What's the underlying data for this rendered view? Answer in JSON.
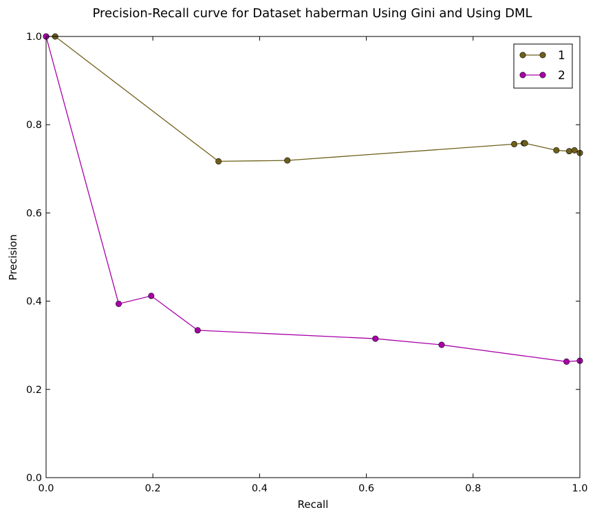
{
  "chart_data": {
    "type": "line",
    "title": "Precision-Recall curve for Dataset haberman Using Gini and Using DML",
    "xlabel": "Recall",
    "ylabel": "Precision",
    "xlim": [
      0.0,
      1.0
    ],
    "ylim": [
      0.0,
      1.0
    ],
    "xticks": [
      "0.0",
      "0.2",
      "0.4",
      "0.6",
      "0.8",
      "1.0"
    ],
    "yticks": [
      "0.0",
      "0.2",
      "0.4",
      "0.6",
      "0.8",
      "1.0"
    ],
    "grid": false,
    "legend_position": "top-right",
    "series": [
      {
        "name": "1",
        "color": "#6e5f1b",
        "marker": "circle",
        "x": [
          0.0,
          0.017,
          0.323,
          0.452,
          0.877,
          0.895,
          0.897,
          0.956,
          0.98,
          0.99,
          1.0
        ],
        "y": [
          1.0,
          1.0,
          0.717,
          0.719,
          0.756,
          0.758,
          0.758,
          0.742,
          0.74,
          0.742,
          0.736
        ]
      },
      {
        "name": "2",
        "color": "#a800a8",
        "marker": "circle",
        "x": [
          0.0,
          0.136,
          0.197,
          0.284,
          0.617,
          0.741,
          0.975,
          1.0
        ],
        "y": [
          1.0,
          0.394,
          0.412,
          0.334,
          0.315,
          0.301,
          0.263,
          0.265
        ]
      }
    ]
  }
}
